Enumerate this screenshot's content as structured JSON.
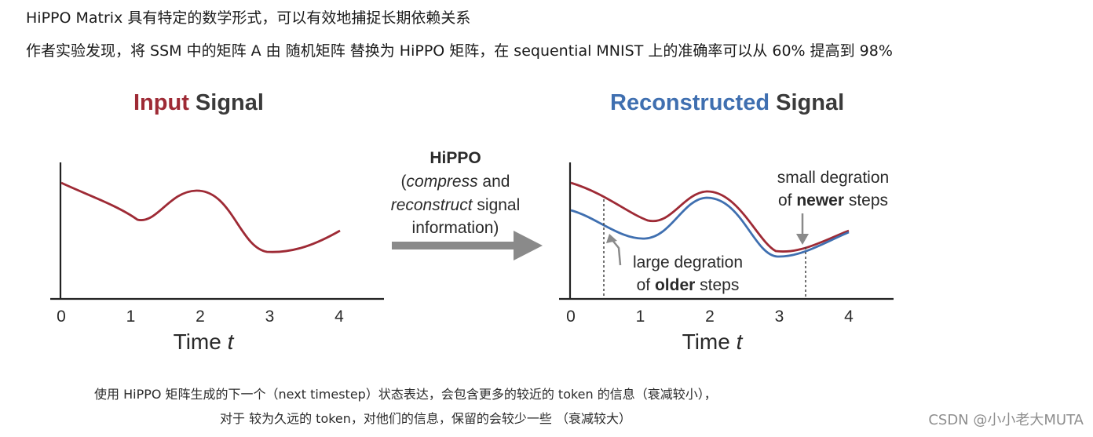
{
  "intro": {
    "line1": "HiPPO Matrix 具有特定的数学形式，可以有效地捕捉长期依赖关系",
    "line2": "作者实验发现，将 SSM 中的矩阵 A 由 随机矩阵 替换为 HiPPO  矩阵，在 sequential MNIST 上的准确率可以从 60% 提高到 98%"
  },
  "figure": {
    "input_title_colored": "Input",
    "input_title_rest": "Signal",
    "recon_title_colored": "Reconstructed",
    "recon_title_rest": "Signal",
    "arrow_label_1": "HiPPO",
    "arrow_label_2a": "(",
    "arrow_label_2b": "compress",
    "arrow_label_2c": " and",
    "arrow_label_3a": "reconstruct",
    "arrow_label_3b": " signal",
    "arrow_label_4": "information)",
    "note_small_1": "small degration",
    "note_small_2a": "of ",
    "note_small_2b": "newer",
    "note_small_2c": " steps",
    "note_large_1": "large degration",
    "note_large_2a": "of ",
    "note_large_2b": "older",
    "note_large_2c": " steps",
    "x_ticks": [
      "0",
      "1",
      "2",
      "3",
      "4"
    ],
    "x_label_text": "Time ",
    "x_label_var": "t",
    "colors": {
      "input": "#9e2a35",
      "reconstructed": "#3f6fb0",
      "title_gray": "#3a3a3a",
      "arrow": "#8a8a8a"
    }
  },
  "captions": {
    "line1": "使用 HiPPO 矩阵生成的下一个（next timestep）状态表达，会包含更多的较近的 token 的信息（衰减较小），",
    "line2": "对于 较为久远的 token，对他们的信息，保留的会较少一些 （衰减较大）"
  },
  "watermark": "CSDN @小小老大MUTA"
}
